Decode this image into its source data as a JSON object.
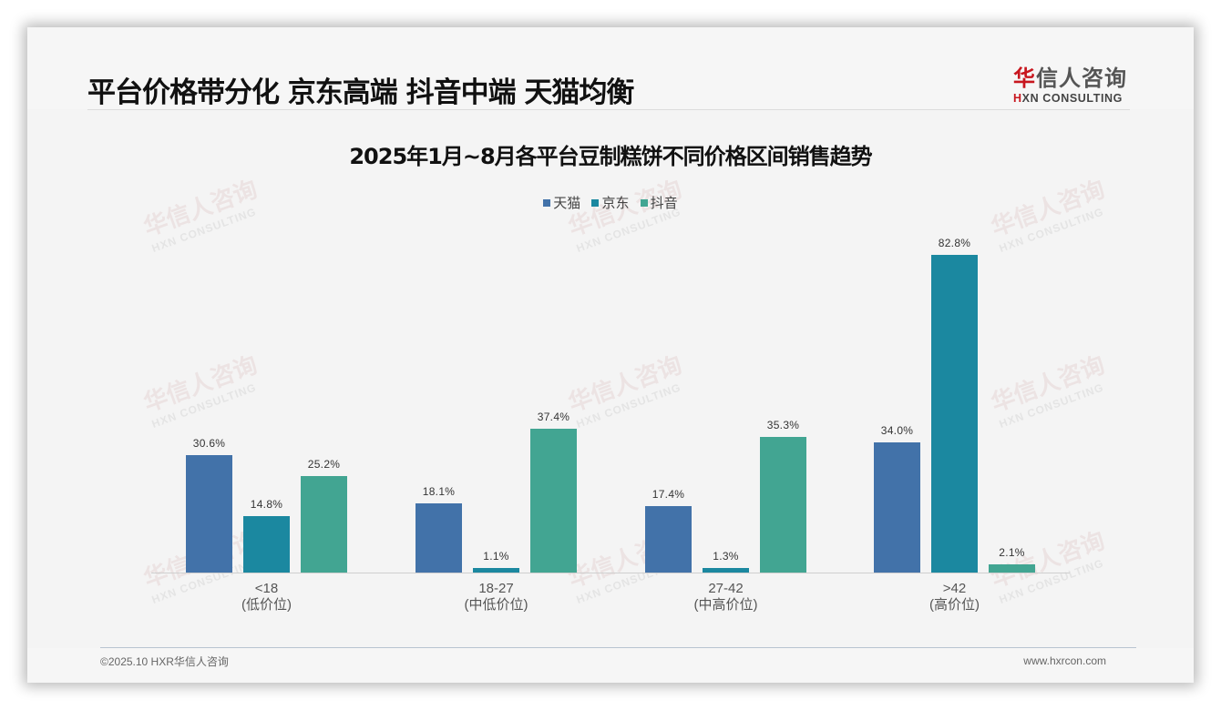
{
  "header": {
    "title": "平台价格带分化 京东高端 抖音中端 天猫均衡",
    "logo": {
      "cn_first": "华",
      "cn_rest": "信人咨询",
      "en_first": "H",
      "en_rest": "XN CONSULTING"
    }
  },
  "watermark": {
    "cn": "华信人咨询",
    "en": "HXN CONSULTING"
  },
  "colors": {
    "tianmao": "#4272a9",
    "jingdong": "#1b88a0",
    "douyin": "#42a592"
  },
  "chart_data": {
    "type": "bar",
    "title": "2025年1月~8月各平台豆制糕饼不同价格区间销售趋势",
    "xlabel": "",
    "ylabel": "",
    "ylim": [
      0,
      90
    ],
    "grid": false,
    "legend_position": "top",
    "categories": [
      "<18 (低价位)",
      "18-27 (中低价位)",
      "27-42 (中高价位)",
      ">42 (高价位)"
    ],
    "category_lines": [
      {
        "range": "<18",
        "tier": "(低价位)"
      },
      {
        "range": "18-27",
        "tier": "(中低价位)"
      },
      {
        "range": "27-42",
        "tier": "(中高价位)"
      },
      {
        "range": ">42",
        "tier": "(高价位)"
      }
    ],
    "series": [
      {
        "name": "天猫",
        "color": "#4272a9",
        "values": [
          30.6,
          18.1,
          17.4,
          34.0
        ],
        "labels": [
          "30.6%",
          "18.1%",
          "17.4%",
          "34.0%"
        ]
      },
      {
        "name": "京东",
        "color": "#1b88a0",
        "values": [
          14.8,
          1.1,
          1.3,
          82.8
        ],
        "labels": [
          "14.8%",
          "1.1%",
          "1.3%",
          "82.8%"
        ]
      },
      {
        "name": "抖音",
        "color": "#42a592",
        "values": [
          25.2,
          37.4,
          35.3,
          2.1
        ],
        "labels": [
          "25.2%",
          "37.4%",
          "35.3%",
          "2.1%"
        ]
      }
    ]
  },
  "footer": {
    "left": "©2025.10 HXR华信人咨询",
    "right": "www.hxrcon.com"
  }
}
